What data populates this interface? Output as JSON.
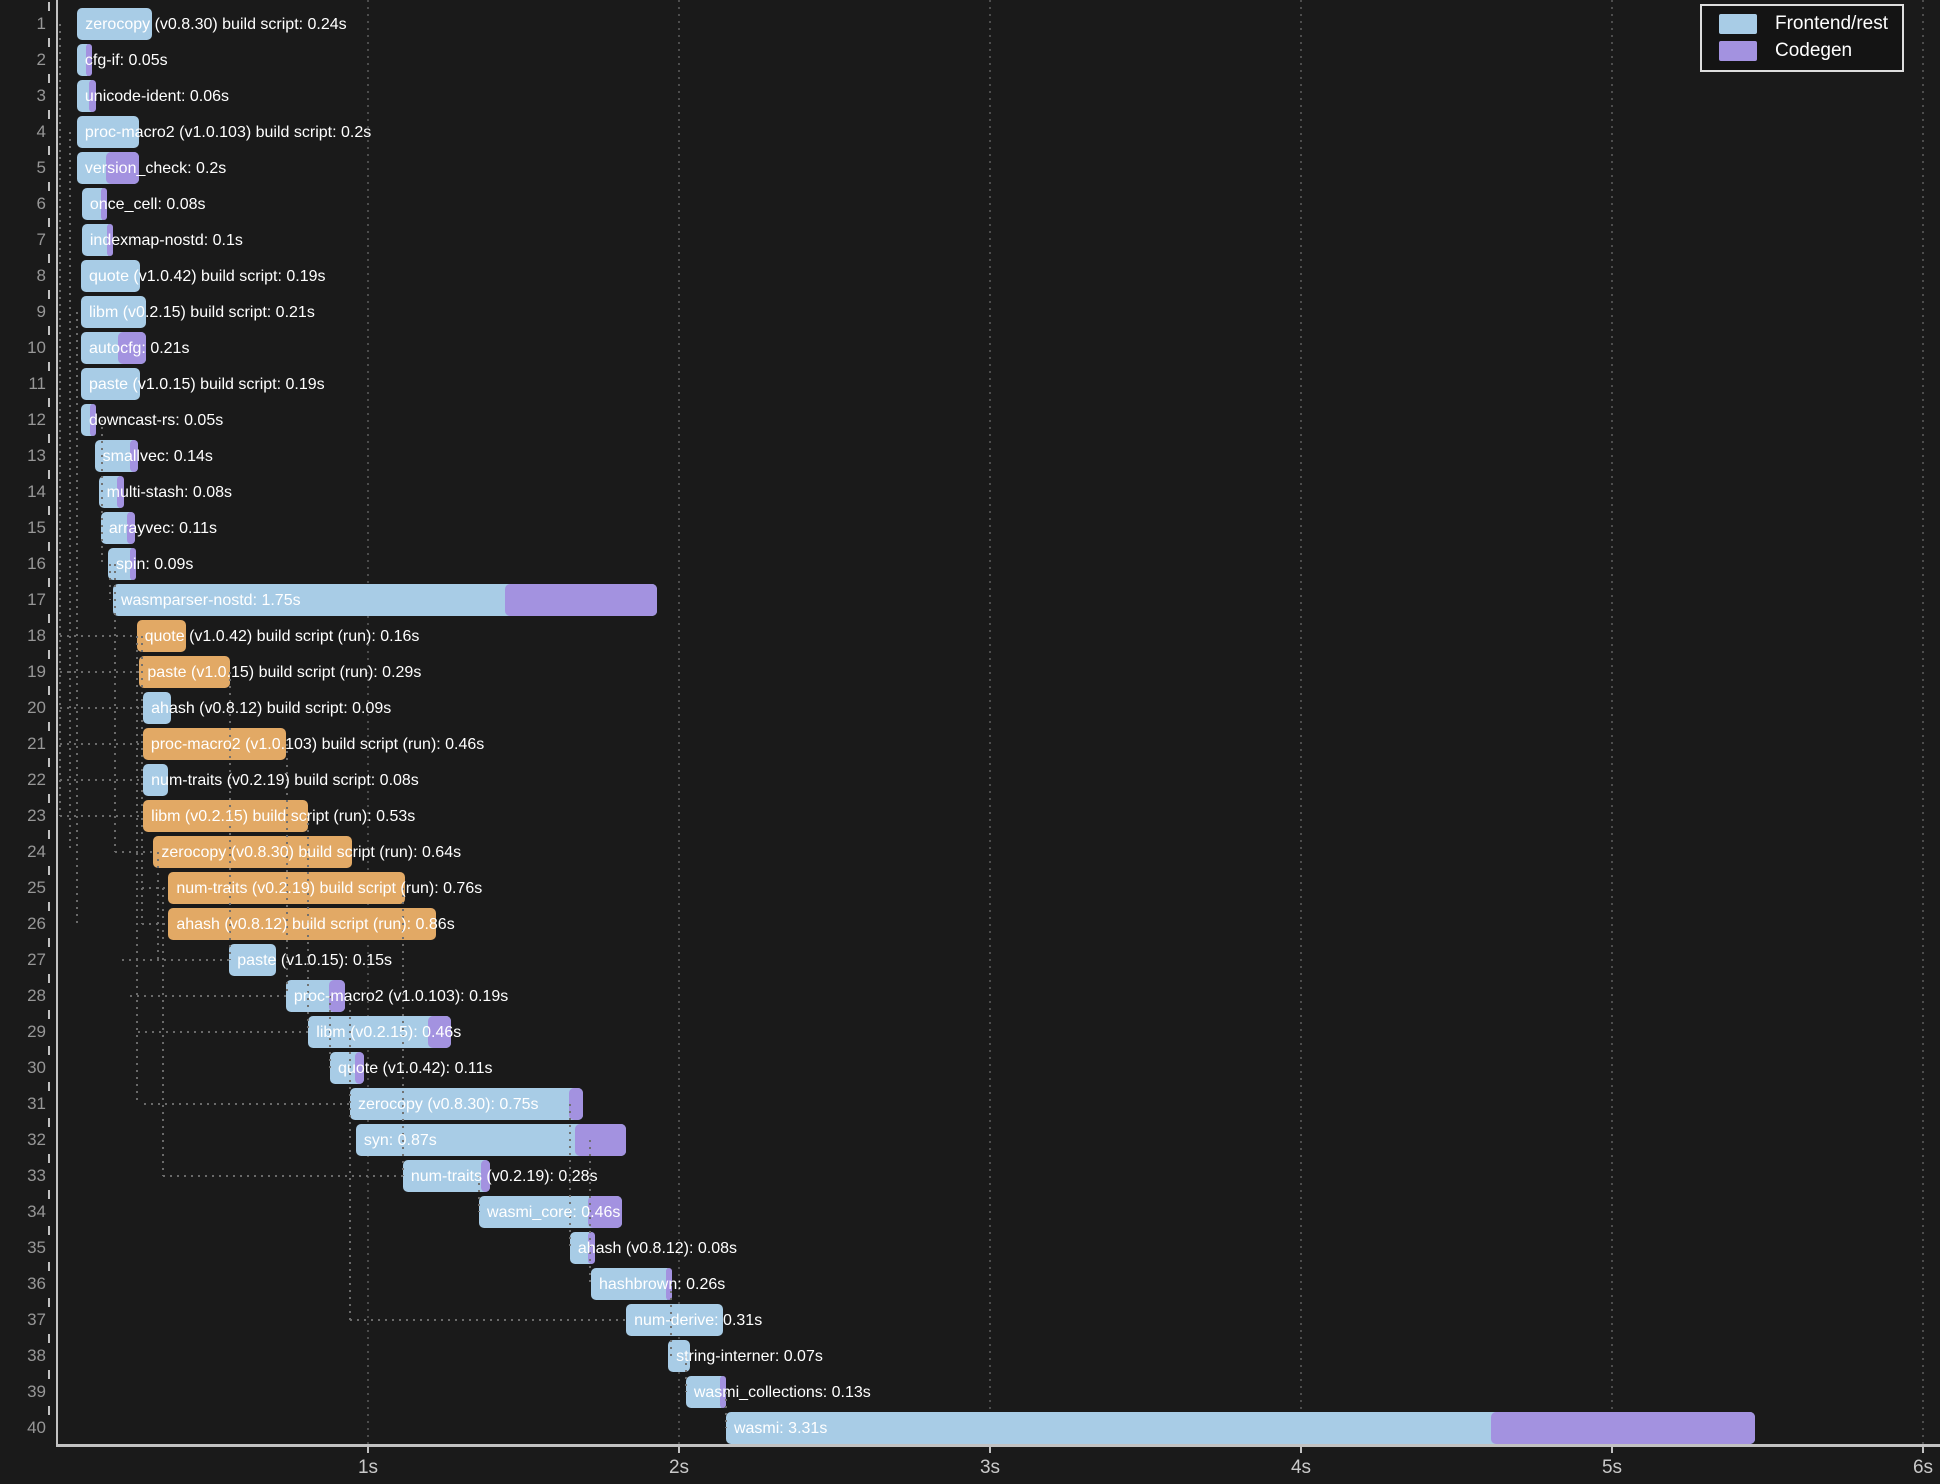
{
  "chart_data": {
    "type": "bar",
    "variant": "gantt-build-timeline",
    "title": "",
    "xlabel": "",
    "ylabel": "",
    "x_range_seconds": [
      0,
      6.05
    ],
    "grid": "vertical-dotted",
    "legend_position": "top-right",
    "x_ticks": [
      {
        "t": 1,
        "label": "1s"
      },
      {
        "t": 2,
        "label": "2s"
      },
      {
        "t": 3,
        "label": "3s"
      },
      {
        "t": 4,
        "label": "4s"
      },
      {
        "t": 5,
        "label": "5s"
      },
      {
        "t": 6,
        "label": "6s"
      }
    ],
    "legend": [
      {
        "key": "frontend",
        "label": "Frontend/rest"
      },
      {
        "key": "codegen",
        "label": "Codegen"
      }
    ],
    "colors": {
      "frontend": "#a8cce6",
      "codegen": "#a392e0",
      "build_run": "#e2a965",
      "background": "#1a1a1a",
      "bar_text": "#ffffff",
      "row_number": "#979797",
      "axis": "#c2c2c2",
      "gridline": "#4d4d4d",
      "dep_line": "#6e6e6e",
      "legend_border": "#dedede"
    },
    "units": [
      {
        "n": 1,
        "label": "zerocopy (v0.8.30) build script: 0.24s",
        "start": 0.065,
        "duration": 0.24,
        "codegen": 0,
        "kind": "frontend"
      },
      {
        "n": 2,
        "label": "cfg-if: 0.05s",
        "start": 0.064,
        "duration": 0.05,
        "codegen": 0.02,
        "kind": "frontend"
      },
      {
        "n": 3,
        "label": "unicode-ident: 0.06s",
        "start": 0.064,
        "duration": 0.06,
        "codegen": 0.02,
        "kind": "frontend"
      },
      {
        "n": 4,
        "label": "proc-macro2 (v1.0.103) build script: 0.2s",
        "start": 0.064,
        "duration": 0.2,
        "codegen": 0,
        "kind": "frontend"
      },
      {
        "n": 5,
        "label": "version_check: 0.2s",
        "start": 0.064,
        "duration": 0.2,
        "codegen": 0.105,
        "kind": "frontend"
      },
      {
        "n": 6,
        "label": "once_cell: 0.08s",
        "start": 0.08,
        "duration": 0.08,
        "codegen": 0.02,
        "kind": "frontend"
      },
      {
        "n": 7,
        "label": "indexmap-nostd: 0.1s",
        "start": 0.08,
        "duration": 0.1,
        "codegen": 0.02,
        "kind": "frontend"
      },
      {
        "n": 8,
        "label": "quote (v1.0.42) build script: 0.19s",
        "start": 0.077,
        "duration": 0.19,
        "codegen": 0,
        "kind": "frontend"
      },
      {
        "n": 9,
        "label": "libm (v0.2.15) build script: 0.21s",
        "start": 0.077,
        "duration": 0.21,
        "codegen": 0,
        "kind": "frontend"
      },
      {
        "n": 10,
        "label": "autocfg: 0.21s",
        "start": 0.077,
        "duration": 0.21,
        "codegen": 0.09,
        "kind": "frontend"
      },
      {
        "n": 11,
        "label": "paste (v1.0.15) build script: 0.19s",
        "start": 0.077,
        "duration": 0.19,
        "codegen": 0,
        "kind": "frontend"
      },
      {
        "n": 12,
        "label": "downcast-rs: 0.05s",
        "start": 0.077,
        "duration": 0.05,
        "codegen": 0.015,
        "kind": "frontend"
      },
      {
        "n": 13,
        "label": "smallvec: 0.14s",
        "start": 0.121,
        "duration": 0.14,
        "codegen": 0.025,
        "kind": "frontend"
      },
      {
        "n": 14,
        "label": "multi-stash: 0.08s",
        "start": 0.134,
        "duration": 0.08,
        "codegen": 0.02,
        "kind": "frontend"
      },
      {
        "n": 15,
        "label": "arrayvec: 0.11s",
        "start": 0.141,
        "duration": 0.11,
        "codegen": 0.025,
        "kind": "frontend"
      },
      {
        "n": 16,
        "label": "spin: 0.09s",
        "start": 0.164,
        "duration": 0.09,
        "codegen": 0.02,
        "kind": "frontend"
      },
      {
        "n": 17,
        "label": "wasmparser-nostd: 1.75s",
        "start": 0.18,
        "duration": 1.75,
        "codegen": 0.49,
        "kind": "frontend"
      },
      {
        "n": 18,
        "label": "quote (v1.0.42) build script (run): 0.16s",
        "start": 0.256,
        "duration": 0.16,
        "codegen": 0,
        "kind": "build-script-run"
      },
      {
        "n": 19,
        "label": "paste (v1.0.15) build script (run): 0.29s",
        "start": 0.265,
        "duration": 0.29,
        "codegen": 0,
        "kind": "build-script-run"
      },
      {
        "n": 20,
        "label": "ahash (v0.8.12) build script: 0.09s",
        "start": 0.277,
        "duration": 0.09,
        "codegen": 0,
        "kind": "frontend"
      },
      {
        "n": 21,
        "label": "proc-macro2 (v1.0.103) build script (run): 0.46s",
        "start": 0.276,
        "duration": 0.46,
        "codegen": 0,
        "kind": "build-script-run"
      },
      {
        "n": 22,
        "label": "num-traits (v0.2.19) build script: 0.08s",
        "start": 0.277,
        "duration": 0.08,
        "codegen": 0,
        "kind": "frontend"
      },
      {
        "n": 23,
        "label": "libm (v0.2.15) build script (run): 0.53s",
        "start": 0.277,
        "duration": 0.53,
        "codegen": 0,
        "kind": "build-script-run"
      },
      {
        "n": 24,
        "label": "zerocopy (v0.8.30) build script (run): 0.64s",
        "start": 0.31,
        "duration": 0.64,
        "codegen": 0,
        "kind": "build-script-run"
      },
      {
        "n": 25,
        "label": "num-traits (v0.2.19) build script (run): 0.76s",
        "start": 0.358,
        "duration": 0.76,
        "codegen": 0,
        "kind": "build-script-run"
      },
      {
        "n": 26,
        "label": "ahash (v0.8.12) build script (run): 0.86s",
        "start": 0.358,
        "duration": 0.86,
        "codegen": 0,
        "kind": "build-script-run"
      },
      {
        "n": 27,
        "label": "paste (v1.0.15): 0.15s",
        "start": 0.554,
        "duration": 0.15,
        "codegen": 0,
        "kind": "frontend"
      },
      {
        "n": 28,
        "label": "proc-macro2 (v1.0.103): 0.19s",
        "start": 0.736,
        "duration": 0.19,
        "codegen": 0.05,
        "kind": "frontend"
      },
      {
        "n": 29,
        "label": "libm (v0.2.15): 0.46s",
        "start": 0.808,
        "duration": 0.46,
        "codegen": 0.075,
        "kind": "frontend"
      },
      {
        "n": 30,
        "label": "quote (v1.0.42): 0.11s",
        "start": 0.878,
        "duration": 0.11,
        "codegen": 0.03,
        "kind": "frontend"
      },
      {
        "n": 31,
        "label": "zerocopy (v0.8.30): 0.75s",
        "start": 0.942,
        "duration": 0.75,
        "codegen": 0.045,
        "kind": "frontend"
      },
      {
        "n": 32,
        "label": "syn: 0.87s",
        "start": 0.961,
        "duration": 0.87,
        "codegen": 0.165,
        "kind": "frontend"
      },
      {
        "n": 33,
        "label": "num-traits (v0.2.19): 0.28s",
        "start": 1.112,
        "duration": 0.28,
        "codegen": 0.03,
        "kind": "frontend"
      },
      {
        "n": 34,
        "label": "wasmi_core: 0.46s",
        "start": 1.357,
        "duration": 0.46,
        "codegen": 0.11,
        "kind": "frontend"
      },
      {
        "n": 35,
        "label": "ahash (v0.8.12): 0.08s",
        "start": 1.649,
        "duration": 0.08,
        "codegen": 0.02,
        "kind": "frontend"
      },
      {
        "n": 36,
        "label": "hashbrown: 0.26s",
        "start": 1.717,
        "duration": 0.26,
        "codegen": 0.02,
        "kind": "frontend"
      },
      {
        "n": 37,
        "label": "num-derive: 0.31s",
        "start": 1.83,
        "duration": 0.31,
        "codegen": 0,
        "kind": "frontend"
      },
      {
        "n": 38,
        "label": "string-interner: 0.07s",
        "start": 1.965,
        "duration": 0.07,
        "codegen": 0,
        "kind": "frontend"
      },
      {
        "n": 39,
        "label": "wasmi_collections: 0.13s",
        "start": 2.022,
        "duration": 0.13,
        "codegen": 0.02,
        "kind": "frontend"
      },
      {
        "n": 40,
        "label": "wasmi: 3.31s",
        "start": 2.151,
        "duration": 3.31,
        "codegen": 0.85,
        "kind": "frontend"
      }
    ],
    "dep_lines": {
      "vertical": [
        {
          "t": 0.01,
          "from_row": 1,
          "to_row": 23
        },
        {
          "t": 0.042,
          "from_row": 4,
          "to_row": 24
        },
        {
          "t": 0.064,
          "from_row": 9,
          "to_row": 26
        },
        {
          "t": 0.145,
          "from_row": 12,
          "to_row": 16
        },
        {
          "t": 0.17,
          "from_row": 16,
          "to_row": 17
        },
        {
          "t": 0.187,
          "from_row": 16,
          "to_row": 24
        },
        {
          "t": 0.258,
          "from_row": 18,
          "to_row": 31
        },
        {
          "t": 0.273,
          "from_row": 18,
          "to_row": 26
        },
        {
          "t": 0.325,
          "from_row": 24,
          "to_row": 27
        },
        {
          "t": 0.34,
          "from_row": 25,
          "to_row": 33
        },
        {
          "t": 0.556,
          "from_row": 19,
          "to_row": 27
        },
        {
          "t": 0.74,
          "from_row": 21,
          "to_row": 28
        },
        {
          "t": 0.807,
          "from_row": 23,
          "to_row": 29
        },
        {
          "t": 0.878,
          "from_row": 28,
          "to_row": 30
        },
        {
          "t": 0.942,
          "from_row": 28,
          "to_row": 37
        },
        {
          "t": 1.113,
          "from_row": 25,
          "to_row": 33
        },
        {
          "t": 1.357,
          "from_row": 33,
          "to_row": 34
        },
        {
          "t": 1.649,
          "from_row": 31,
          "to_row": 35
        },
        {
          "t": 1.714,
          "from_row": 32,
          "to_row": 36
        },
        {
          "t": 1.974,
          "from_row": 36,
          "to_row": 38
        },
        {
          "t": 2.022,
          "from_row": 38,
          "to_row": 39
        },
        {
          "t": 2.151,
          "from_row": 39,
          "to_row": 40
        }
      ],
      "horizontal": [
        {
          "row": 18,
          "t1": 0.01,
          "t2": 0.256
        },
        {
          "row": 19,
          "t1": 0.01,
          "t2": 0.265
        },
        {
          "row": 20,
          "t1": 0.01,
          "t2": 0.277
        },
        {
          "row": 21,
          "t1": 0.01,
          "t2": 0.276
        },
        {
          "row": 22,
          "t1": 0.01,
          "t2": 0.277
        },
        {
          "row": 23,
          "t1": 0.01,
          "t2": 0.277
        },
        {
          "row": 24,
          "t1": 0.187,
          "t2": 0.31
        },
        {
          "row": 25,
          "t1": 0.273,
          "t2": 0.358
        },
        {
          "row": 26,
          "t1": 0.273,
          "t2": 0.358
        },
        {
          "row": 27,
          "t1": 0.21,
          "t2": 0.554
        },
        {
          "row": 28,
          "t1": 0.235,
          "t2": 0.736
        },
        {
          "row": 29,
          "t1": 0.26,
          "t2": 0.808
        },
        {
          "row": 31,
          "t1": 0.28,
          "t2": 0.942
        },
        {
          "row": 33,
          "t1": 0.34,
          "t2": 1.112
        },
        {
          "row": 37,
          "t1": 0.942,
          "t2": 1.83
        }
      ]
    }
  }
}
